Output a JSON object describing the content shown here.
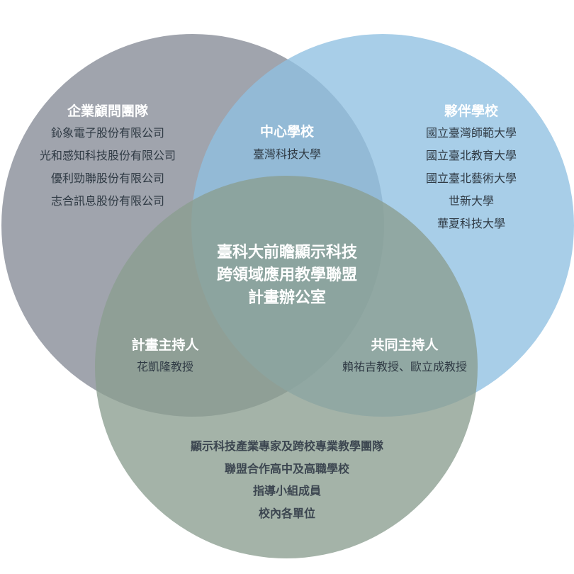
{
  "colors": {
    "circle_left": "#8f949f",
    "circle_right": "#8fc0e2",
    "circle_bottom": "#8a9e8f",
    "title_text": "#ffffff",
    "item_text": "#2f3a44"
  },
  "consultants": {
    "title": "企業顧問團隊",
    "items": [
      "鈊象電子股份有限公司",
      "光和感知科技股份有限公司",
      "優利勁聯股份有限公司",
      "志合訊息股份有限公司"
    ]
  },
  "partners": {
    "title": "夥伴學校",
    "items": [
      "國立臺灣師範大學",
      "國立臺北教育大學",
      "國立臺北藝術大學",
      "世新大學",
      "華夏科技大學"
    ]
  },
  "center_school": {
    "title": "中心學校",
    "items": [
      "臺灣科技大學"
    ]
  },
  "office": {
    "lines": [
      "臺科大前瞻顯示科技",
      "跨領域應用教學聯盟",
      "計畫辦公室"
    ]
  },
  "pi": {
    "title": "計畫主持人",
    "name": "花凱隆教授"
  },
  "co_pi": {
    "title": "共同主持人",
    "names": "賴祐吉教授、歐立成教授"
  },
  "members": {
    "items": [
      "顯示科技產業專家及跨校專業教學團隊",
      "聯盟合作高中及高職學校",
      "指導小組成員",
      "校內各單位"
    ]
  }
}
